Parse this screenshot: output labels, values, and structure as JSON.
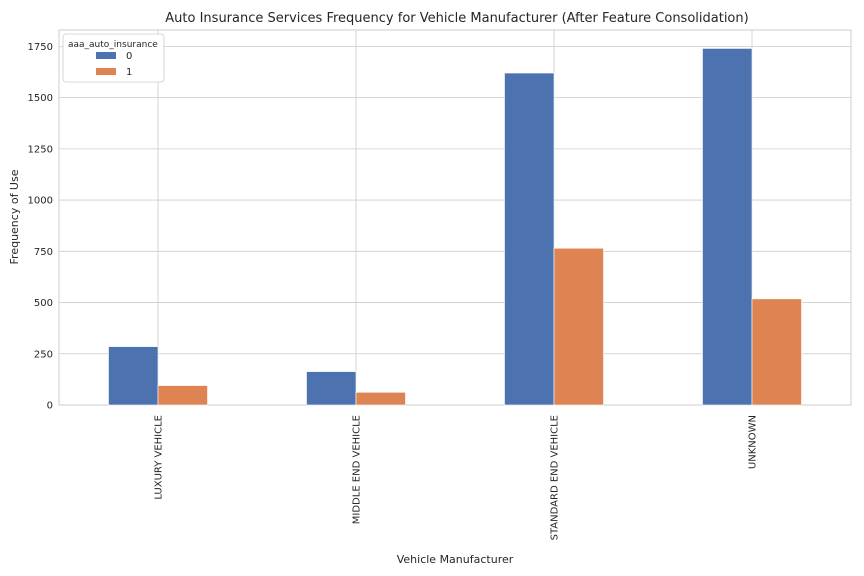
{
  "chart_data": {
    "type": "bar",
    "title": "Auto Insurance Services Frequency for Vehicle Manufacturer (After Feature Consolidation)",
    "xlabel": "Vehicle Manufacturer",
    "ylabel": "Frequency of Use",
    "categories": [
      "LUXURY VEHICLE",
      "MIDDLE END VEHICLE",
      "STANDARD END VEHICLE",
      "UNKNOWN"
    ],
    "series": [
      {
        "name": "0",
        "values": [
          285,
          163,
          1620,
          1740
        ],
        "color": "#4c72b0"
      },
      {
        "name": "1",
        "values": [
          95,
          62,
          765,
          518
        ],
        "color": "#dd8452"
      }
    ],
    "ylim": [
      0,
      1830
    ],
    "yticks": [
      0,
      250,
      500,
      750,
      1000,
      1250,
      1500,
      1750
    ],
    "yticklabels": [
      "0",
      "250",
      "500",
      "750",
      "1000",
      "1250",
      "1500",
      "1750"
    ],
    "grid": true,
    "legend": {
      "title": "aaa_auto_insurance",
      "placement": "top-left"
    }
  }
}
